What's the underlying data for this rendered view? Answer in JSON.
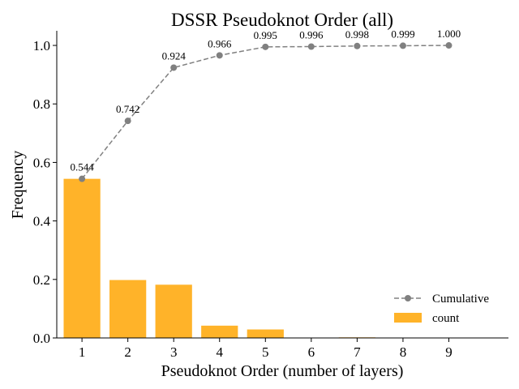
{
  "chart_data": {
    "type": "bar",
    "title": "DSSR Pseudoknot Order (all)",
    "xlabel": "Pseudoknot Order (number of layers)",
    "ylabel": "Frequency",
    "xlim": [
      0.45,
      10.3
    ],
    "ylim": [
      0,
      1.05
    ],
    "categories": [
      "1",
      "2",
      "3",
      "4",
      "5",
      "6",
      "7",
      "8",
      "9"
    ],
    "x": [
      1,
      2,
      3,
      4,
      5,
      6,
      7,
      8,
      9
    ],
    "y_ticks": [
      "0.0",
      "0.2",
      "0.4",
      "0.6",
      "0.8",
      "1.0"
    ],
    "grid": false,
    "legend": "lower-right",
    "series": [
      {
        "name": "count",
        "type": "bar",
        "color": "#FFB329",
        "values": [
          0.544,
          0.198,
          0.182,
          0.042,
          0.029,
          0.001,
          0.002,
          0.001,
          0.001
        ]
      },
      {
        "name": "Cumulative",
        "type": "line",
        "style": "dashed",
        "marker": "circle",
        "color": "#808080",
        "values": [
          0.544,
          0.742,
          0.924,
          0.966,
          0.995,
          0.996,
          0.998,
          0.999,
          1.0
        ],
        "labels": [
          "0.544",
          "0.742",
          "0.924",
          "0.966",
          "0.995",
          "0.996",
          "0.998",
          "0.999",
          "1.000"
        ]
      }
    ]
  }
}
